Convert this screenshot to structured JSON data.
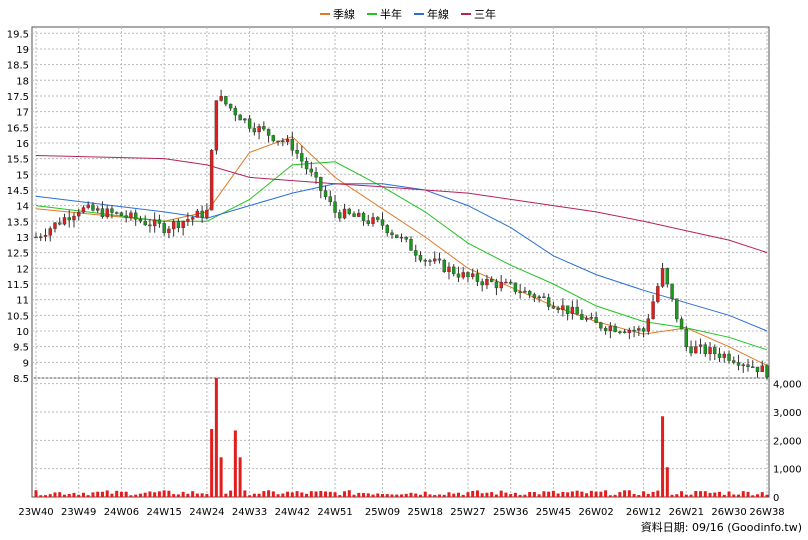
{
  "chart_data": [
    {
      "type": "candlestick",
      "legend_position": "top-center",
      "legend": [
        {
          "label": "季線",
          "color": "#e07a28"
        },
        {
          "label": "半年",
          "color": "#22c322"
        },
        {
          "label": "年線",
          "color": "#2b6fd6"
        },
        {
          "label": "三年",
          "color": "#b4235a"
        }
      ],
      "grid": true,
      "ylim": [
        8.5,
        19.7
      ],
      "y_ticks": [
        "8.5",
        "9",
        "9.5",
        "10",
        "10.5",
        "11",
        "11.5",
        "12",
        "12.5",
        "13",
        "13.5",
        "14",
        "14.5",
        "15",
        "15.5",
        "16",
        "16.5",
        "17",
        "17.5",
        "18",
        "18.5",
        "19",
        "19.5"
      ],
      "y_tick_values": [
        8.5,
        9,
        9.5,
        10,
        10.5,
        11,
        11.5,
        12,
        12.5,
        13,
        13.5,
        14,
        14.5,
        15,
        15.5,
        16,
        16.5,
        17,
        17.5,
        18,
        18.5,
        19,
        19.5
      ],
      "x_ticks": [
        "23W40",
        "23W49",
        "24W06",
        "24W15",
        "24W24",
        "24W33",
        "24W42",
        "24W51",
        "25W09",
        "25W18",
        "25W27",
        "25W36",
        "25W45",
        "26W02",
        "26W12",
        "26W21",
        "26W30",
        "26W38"
      ],
      "approx_weekly_close": [
        {
          "week": "23W40",
          "close": 13.0
        },
        {
          "week": "23W49",
          "close": 13.9
        },
        {
          "week": "24W06",
          "close": 13.7
        },
        {
          "week": "24W15",
          "close": 13.3
        },
        {
          "week": "24W24",
          "close": 13.8
        },
        {
          "week": "24W26",
          "close": 17.5
        },
        {
          "week": "24W33",
          "close": 16.6
        },
        {
          "week": "24W42",
          "close": 15.9
        },
        {
          "week": "24W51",
          "close": 13.8
        },
        {
          "week": "25W09",
          "close": 13.4
        },
        {
          "week": "25W18",
          "close": 12.3
        },
        {
          "week": "25W27",
          "close": 11.7
        },
        {
          "week": "25W36",
          "close": 11.4
        },
        {
          "week": "25W45",
          "close": 10.9
        },
        {
          "week": "26W02",
          "close": 10.2
        },
        {
          "week": "26W12",
          "close": 10.0
        },
        {
          "week": "26W16",
          "close": 11.9
        },
        {
          "week": "26W21",
          "close": 9.5
        },
        {
          "week": "26W30",
          "close": 9.2
        },
        {
          "week": "26W38",
          "close": 8.7
        }
      ],
      "moving_averages_approx": {
        "季線": {
          "x": [
            "23W40",
            "24W15",
            "24W24",
            "24W33",
            "24W42",
            "24W51",
            "25W09",
            "25W18",
            "25W27",
            "25W36",
            "25W45",
            "26W02",
            "26W12",
            "26W21",
            "26W30",
            "26W38"
          ],
          "y": [
            13.9,
            13.5,
            13.8,
            15.7,
            16.2,
            14.9,
            13.9,
            13.0,
            12.0,
            11.4,
            10.8,
            10.3,
            9.9,
            10.1,
            9.5,
            8.9
          ]
        },
        "半年": {
          "x": [
            "23W40",
            "24W15",
            "24W24",
            "24W33",
            "24W42",
            "24W51",
            "25W09",
            "25W18",
            "25W27",
            "25W36",
            "25W45",
            "26W02",
            "26W12",
            "26W21",
            "26W30",
            "26W38"
          ],
          "y": [
            14.0,
            13.5,
            13.5,
            14.2,
            15.3,
            15.4,
            14.6,
            13.8,
            12.8,
            12.1,
            11.5,
            10.8,
            10.3,
            10.1,
            9.8,
            9.4
          ]
        },
        "年線": {
          "x": [
            "23W40",
            "24W15",
            "24W24",
            "24W33",
            "24W42",
            "24W51",
            "25W09",
            "25W18",
            "25W27",
            "25W36",
            "25W45",
            "26W02",
            "26W12",
            "26W21",
            "26W30",
            "26W38"
          ],
          "y": [
            14.3,
            13.8,
            13.6,
            14.0,
            14.4,
            14.7,
            14.7,
            14.5,
            14.0,
            13.3,
            12.4,
            11.8,
            11.3,
            10.9,
            10.5,
            10.0
          ]
        },
        "三年": {
          "x": [
            "23W40",
            "24W15",
            "24W24",
            "24W33",
            "24W42",
            "24W51",
            "25W09",
            "25W18",
            "25W27",
            "25W36",
            "25W45",
            "26W02",
            "26W12",
            "26W21",
            "26W30",
            "26W38"
          ],
          "y": [
            15.6,
            15.5,
            15.3,
            14.9,
            14.8,
            14.7,
            14.6,
            14.5,
            14.4,
            14.2,
            14.0,
            13.8,
            13.5,
            13.2,
            12.9,
            12.5
          ]
        }
      }
    },
    {
      "type": "bar",
      "ylim": [
        0,
        4200
      ],
      "y_ticks": [
        "0",
        "1,000",
        "2,000",
        "3,000",
        "4,000"
      ],
      "y_tick_values": [
        0,
        1000,
        2000,
        3000,
        4000
      ],
      "bar_color": "#e01e1e",
      "volume_highlights": [
        {
          "week": "24W25",
          "value": 2400
        },
        {
          "week": "24W26",
          "value": 4350
        },
        {
          "week": "24W27",
          "value": 1400
        },
        {
          "week": "24W30",
          "value": 2350
        },
        {
          "week": "24W31",
          "value": 1400
        },
        {
          "week": "26W16",
          "value": 2850
        },
        {
          "week": "26W17",
          "value": 1050
        }
      ]
    }
  ],
  "footer": {
    "text": "資料日期: 09/16  (Goodinfo.tw)"
  }
}
